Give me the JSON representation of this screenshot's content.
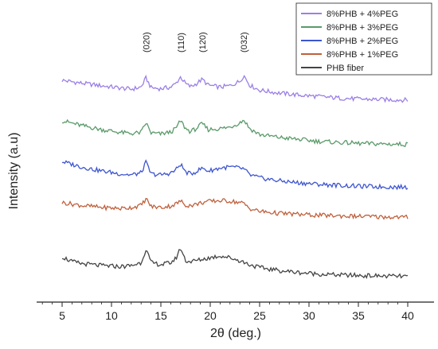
{
  "chart_data": {
    "type": "line",
    "title": "",
    "xlabel": "2θ (deg.)",
    "ylabel": "Intensity (a.u)",
    "xlim": [
      0,
      40
    ],
    "x_ticks": [
      "5",
      "10",
      "15",
      "20",
      "25",
      "30",
      "35",
      "40"
    ],
    "y_ticks_shown": false,
    "grid": false,
    "legend_position": "top-right",
    "peak_annotations": [
      {
        "label": "(020)",
        "x": 13.5
      },
      {
        "label": "(110)",
        "x": 17.0
      },
      {
        "label": "(120)",
        "x": 19.2
      },
      {
        "label": "(032)",
        "x": 23.4
      }
    ],
    "series": [
      {
        "name": "8%PHB + 4%PEG",
        "color": "#9b7fe6",
        "x": [
          5,
          7,
          9,
          11,
          12,
          13,
          13.5,
          14,
          15,
          16,
          16.5,
          17,
          17.5,
          18,
          18.5,
          19.2,
          19.8,
          21,
          22,
          23,
          23.4,
          24,
          25,
          27,
          29,
          31,
          33,
          35,
          37,
          40
        ],
        "y": [
          4.5,
          4.44,
          4.39,
          4.34,
          4.32,
          4.36,
          4.55,
          4.35,
          4.33,
          4.36,
          4.43,
          4.57,
          4.43,
          4.37,
          4.42,
          4.52,
          4.4,
          4.36,
          4.39,
          4.48,
          4.6,
          4.4,
          4.3,
          4.24,
          4.2,
          4.17,
          4.14,
          4.12,
          4.11,
          4.1
        ]
      },
      {
        "name": "8%PHB + 3%PEG",
        "color": "#5a9a6a",
        "x": [
          5,
          7,
          9,
          11,
          12,
          13,
          13.5,
          14,
          15,
          16,
          16.5,
          17,
          17.5,
          18,
          18.5,
          19.2,
          19.8,
          21,
          22,
          23,
          23.4,
          24,
          25,
          27,
          29,
          31,
          33,
          35,
          37,
          40
        ],
        "y": [
          3.68,
          3.58,
          3.5,
          3.44,
          3.42,
          3.44,
          3.64,
          3.43,
          3.41,
          3.45,
          3.52,
          3.68,
          3.52,
          3.46,
          3.51,
          3.62,
          3.5,
          3.52,
          3.55,
          3.64,
          3.7,
          3.52,
          3.4,
          3.34,
          3.3,
          3.26,
          3.24,
          3.22,
          3.21,
          3.2
        ]
      },
      {
        "name": "8%PHB + 2%PEG",
        "color": "#3d55d0",
        "x": [
          5,
          7,
          9,
          11,
          12,
          13,
          13.5,
          14,
          15,
          16,
          16.5,
          17,
          17.5,
          18,
          18.5,
          19.2,
          19.8,
          21,
          22,
          23,
          23.4,
          24,
          25,
          27,
          29,
          31,
          33,
          35,
          37,
          40
        ],
        "y": [
          2.85,
          2.74,
          2.66,
          2.6,
          2.58,
          2.62,
          2.84,
          2.6,
          2.58,
          2.62,
          2.68,
          2.8,
          2.64,
          2.6,
          2.64,
          2.72,
          2.66,
          2.72,
          2.74,
          2.72,
          2.7,
          2.58,
          2.52,
          2.46,
          2.42,
          2.39,
          2.37,
          2.35,
          2.34,
          2.33
        ]
      },
      {
        "name": "8%PHB + 1%PEG",
        "color": "#c0603c",
        "x": [
          5,
          7,
          9,
          11,
          12,
          13,
          13.5,
          14,
          15,
          16,
          16.5,
          17,
          17.5,
          18,
          18.5,
          19.2,
          19.8,
          21,
          22,
          23,
          23.4,
          24,
          25,
          27,
          29,
          31,
          33,
          35,
          37,
          40
        ],
        "y": [
          2.02,
          1.96,
          1.92,
          1.9,
          1.92,
          1.96,
          2.1,
          1.94,
          1.92,
          1.95,
          1.99,
          2.05,
          1.97,
          1.96,
          1.98,
          2.02,
          2.04,
          2.06,
          2.05,
          2.02,
          2.0,
          1.9,
          1.84,
          1.8,
          1.78,
          1.76,
          1.75,
          1.74,
          1.73,
          1.72
        ]
      },
      {
        "name": "PHB fiber",
        "color": "#444444",
        "x": [
          5,
          6,
          7,
          9,
          11,
          12,
          13,
          13.5,
          14,
          15,
          16,
          16.5,
          17,
          17.5,
          18,
          19,
          20,
          21,
          22,
          23,
          24,
          25,
          27,
          29,
          31,
          33,
          35,
          37,
          40
        ],
        "y": [
          0.92,
          0.82,
          0.78,
          0.74,
          0.72,
          0.74,
          0.8,
          1.08,
          0.8,
          0.76,
          0.8,
          0.88,
          1.1,
          0.84,
          0.82,
          0.86,
          0.9,
          0.94,
          0.9,
          0.84,
          0.76,
          0.7,
          0.64,
          0.6,
          0.57,
          0.55,
          0.54,
          0.53,
          0.52
        ]
      }
    ]
  }
}
